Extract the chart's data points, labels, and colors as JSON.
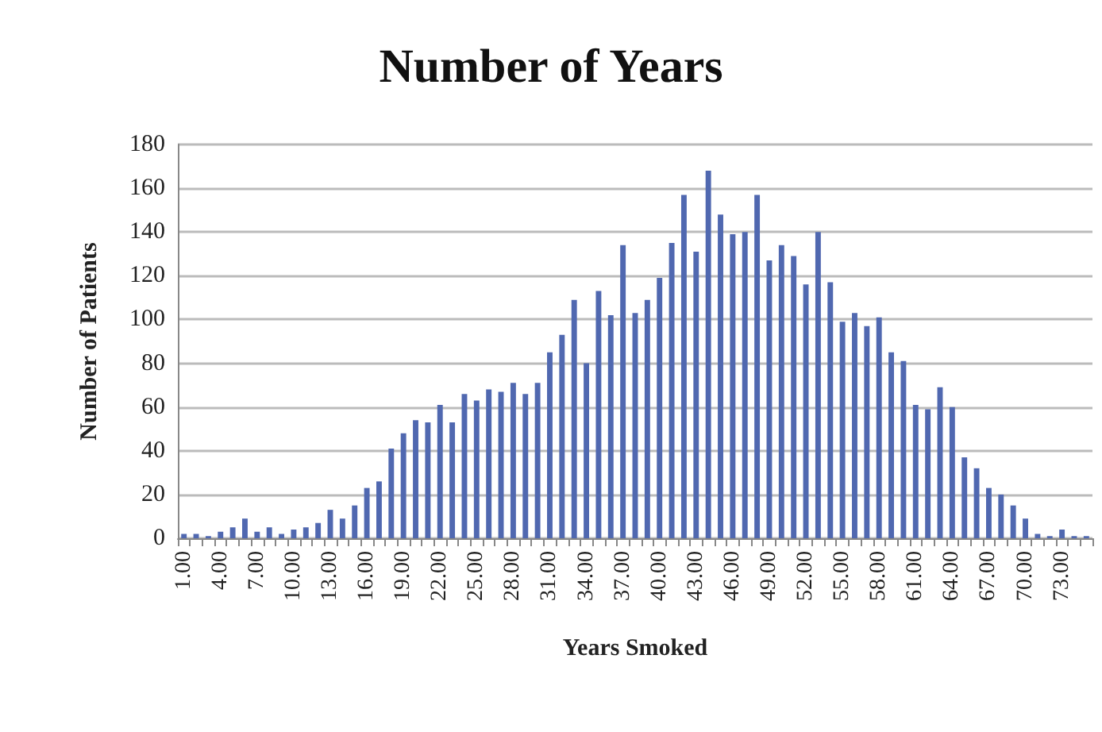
{
  "chart_data": {
    "type": "bar",
    "title": "Number of Years",
    "xlabel": "Years Smoked",
    "ylabel": "Number of Patients",
    "categories": [
      "1.00",
      null,
      null,
      "4.00",
      null,
      null,
      "7.00",
      null,
      null,
      "10.00",
      null,
      null,
      "13.00",
      null,
      null,
      "16.00",
      null,
      null,
      "19.00",
      null,
      null,
      "22.00",
      null,
      null,
      "25.00",
      null,
      null,
      "28.00",
      null,
      null,
      "31.00",
      null,
      null,
      "34.00",
      null,
      null,
      "37.00",
      null,
      null,
      "40.00",
      null,
      null,
      "43.00",
      null,
      null,
      "46.00",
      null,
      null,
      "49.00",
      null,
      null,
      "52.00",
      null,
      null,
      "55.00",
      null,
      null,
      "58.00",
      null,
      null,
      "61.00",
      null,
      null,
      "64.00",
      null,
      null,
      "67.00",
      null,
      null,
      "70.00",
      null,
      null,
      "73.00",
      null,
      null
    ],
    "values": [
      2,
      2,
      1,
      3,
      5,
      9,
      3,
      5,
      2,
      4,
      5,
      7,
      13,
      9,
      15,
      23,
      26,
      41,
      48,
      54,
      53,
      61,
      53,
      66,
      63,
      68,
      67,
      71,
      66,
      71,
      85,
      93,
      109,
      80,
      113,
      102,
      134,
      103,
      109,
      119,
      135,
      157,
      131,
      168,
      148,
      139,
      140,
      157,
      127,
      134,
      129,
      116,
      140,
      117,
      99,
      103,
      97,
      101,
      85,
      81,
      61,
      59,
      69,
      60,
      37,
      32,
      23,
      20,
      15,
      9,
      2,
      1,
      4,
      1,
      1
    ],
    "color": "#5068b0",
    "ylim": [
      0,
      180
    ],
    "yticks": [
      0,
      20,
      40,
      60,
      80,
      100,
      120,
      140,
      160,
      180
    ],
    "grid": "y"
  }
}
